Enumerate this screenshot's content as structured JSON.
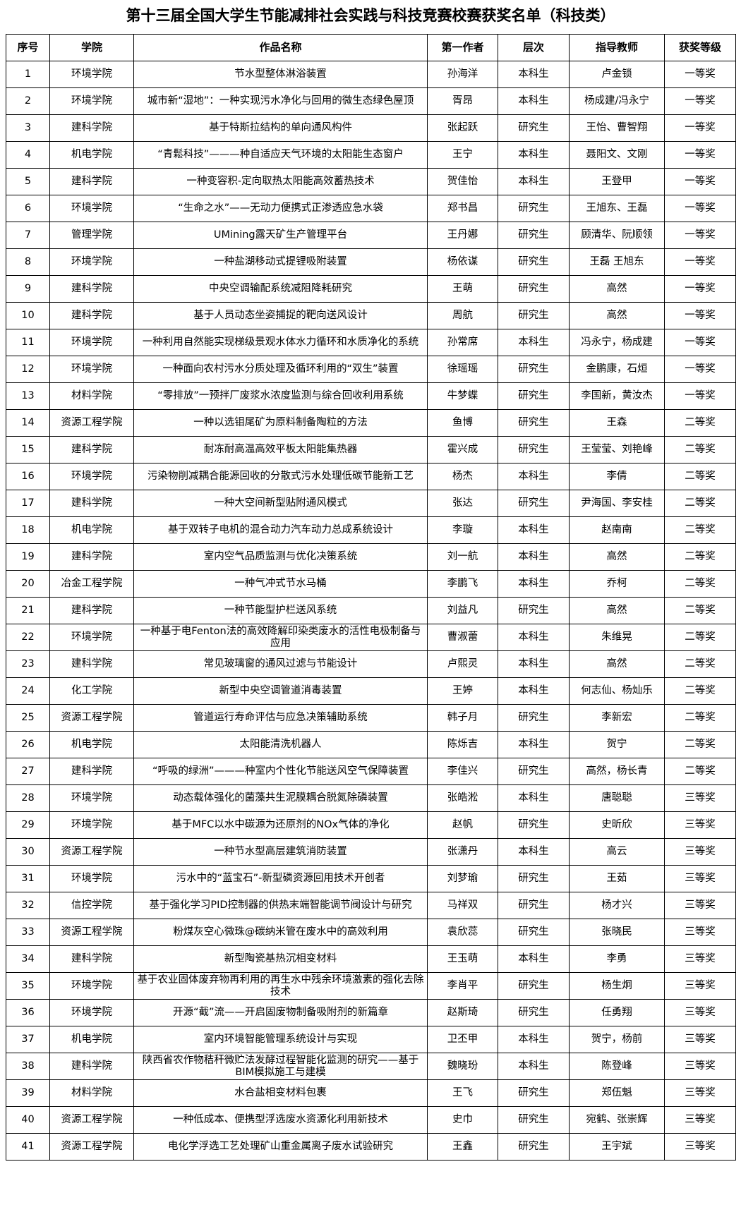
{
  "title": "第十三届全国大学生节能减排社会实践与科技竞赛校赛获奖名单（科技类）",
  "headers": [
    "序号",
    "学院",
    "作品名称",
    "第一作者",
    "层次",
    "指导教师",
    "获奖等级"
  ],
  "rows": [
    [
      "1",
      "环境学院",
      "节水型整体淋浴装置",
      "孙海洋",
      "本科生",
      "卢金锁",
      "一等奖"
    ],
    [
      "2",
      "环境学院",
      "城市新“湿地”：一种实现污水净化与回用的微生态绿色屋顶",
      "胥昂",
      "本科生",
      "杨成建/冯永宁",
      "一等奖"
    ],
    [
      "3",
      "建科学院",
      "基于特斯拉结构的单向通风构件",
      "张起跃",
      "研究生",
      "王怡、曹智翔",
      "一等奖"
    ],
    [
      "4",
      "机电学院",
      "“青鬆科技”———种自适应天气环境的太阳能生态窗户",
      "王宁",
      "本科生",
      "聂阳文、文刚",
      "一等奖"
    ],
    [
      "5",
      "建科学院",
      "一种变容积-定向取热太阳能高效蓄热技术",
      "贺佳怡",
      "本科生",
      "王登甲",
      "一等奖"
    ],
    [
      "6",
      "环境学院",
      "“生命之水”——无动力便携式正渗透应急水袋",
      "郑书昌",
      "研究生",
      "王旭东、王磊",
      "一等奖"
    ],
    [
      "7",
      "管理学院",
      "UMining露天矿生产管理平台",
      "王丹娜",
      "研究生",
      "顾清华、阮顺领",
      "一等奖"
    ],
    [
      "8",
      "环境学院",
      "一种盐湖移动式提锂吸附装置",
      "杨依谋",
      "研究生",
      "王磊  王旭东",
      "一等奖"
    ],
    [
      "9",
      "建科学院",
      "中央空调输配系统减阻降耗研究",
      "王萌",
      "研究生",
      "高然",
      "一等奖"
    ],
    [
      "10",
      "建科学院",
      "基于人员动态坐姿捕捉的靶向送风设计",
      "周航",
      "研究生",
      "高然",
      "一等奖"
    ],
    [
      "11",
      "环境学院",
      "一种利用自然能实现梯级景观水体水力循环和水质净化的系统",
      "孙常席",
      "本科生",
      "冯永宁，杨成建",
      "一等奖"
    ],
    [
      "12",
      "环境学院",
      "一种面向农村污水分质处理及循环利用的“双生”装置",
      "徐瑶瑶",
      "研究生",
      "金鹏康，石烜",
      "一等奖"
    ],
    [
      "13",
      "材料学院",
      "“零排放”一预拌厂废浆水浓度监测与综合回收利用系统",
      "牛梦蝶",
      "研究生",
      "李国新，黄汝杰",
      "一等奖"
    ],
    [
      "14",
      "资源工程学院",
      "一种以选钼尾矿为原料制备陶粒的方法",
      "鱼博",
      "研究生",
      "王森",
      "二等奖"
    ],
    [
      "15",
      "建科学院",
      "耐冻耐高温高效平板太阳能集热器",
      "霍兴成",
      "研究生",
      "王莹莹、刘艳峰",
      "二等奖"
    ],
    [
      "16",
      "环境学院",
      "污染物削减耦合能源回收的分散式污水处理低碳节能新工艺",
      "杨杰",
      "本科生",
      "李倩",
      "二等奖"
    ],
    [
      "17",
      "建科学院",
      "一种大空间新型贴附通风模式",
      "张达",
      "研究生",
      "尹海国、李安桂",
      "二等奖"
    ],
    [
      "18",
      "机电学院",
      "基于双转子电机的混合动力汽车动力总成系统设计",
      "李璇",
      "本科生",
      "赵南南",
      "二等奖"
    ],
    [
      "19",
      "建科学院",
      "室内空气品质监测与优化决策系统",
      "刘一航",
      "本科生",
      "高然",
      "二等奖"
    ],
    [
      "20",
      "冶金工程学院",
      "一种气冲式节水马桶",
      "李鹏飞",
      "本科生",
      "乔柯",
      "二等奖"
    ],
    [
      "21",
      "建科学院",
      "一种节能型护栏送风系统",
      "刘益凡",
      "研究生",
      "高然",
      "二等奖"
    ],
    [
      "22",
      "环境学院",
      "一种基于电Fenton法的高效降解印染类废水的活性电极制备与应用",
      "曹淑蕾",
      "本科生",
      "朱维晃",
      "二等奖"
    ],
    [
      "23",
      "建科学院",
      "常见玻璃窗的通风过滤与节能设计",
      "卢熙灵",
      "本科生",
      "高然",
      "二等奖"
    ],
    [
      "24",
      "化工学院",
      "新型中央空调管道消毒装置",
      "王婷",
      "本科生",
      "何志仙、杨灿乐",
      "二等奖"
    ],
    [
      "25",
      "资源工程学院",
      "管道运行寿命评估与应急决策辅助系统",
      "韩子月",
      "研究生",
      "李新宏",
      "二等奖"
    ],
    [
      "26",
      "机电学院",
      "太阳能清洗机器人",
      "陈烁吉",
      "本科生",
      "贺宁",
      "二等奖"
    ],
    [
      "27",
      "建科学院",
      "“呼吸的绿洲”———种室内个性化节能送风空气保障装置",
      "李佳兴",
      "研究生",
      "高然，杨长青",
      "二等奖"
    ],
    [
      "28",
      "环境学院",
      "动态载体强化的菌藻共生泥膜耦合脱氮除磷装置",
      "张皓淞",
      "本科生",
      "唐聪聪",
      "三等奖"
    ],
    [
      "29",
      "环境学院",
      "基于MFC以水中碳源为还原剂的NOx气体的净化",
      "赵帆",
      "研究生",
      "史昕欣",
      "三等奖"
    ],
    [
      "30",
      "资源工程学院",
      "一种节水型高层建筑消防装置",
      "张潇丹",
      "本科生",
      "高云",
      "三等奖"
    ],
    [
      "31",
      "环境学院",
      "污水中的“蓝宝石”-新型磷资源回用技术开创者",
      "刘梦瑜",
      "研究生",
      "王茹",
      "三等奖"
    ],
    [
      "32",
      "信控学院",
      "基于强化学习PID控制器的供热末端智能调节阀设计与研究",
      "马祥双",
      "研究生",
      "杨才兴",
      "三等奖"
    ],
    [
      "33",
      "资源工程学院",
      "粉煤灰空心微珠@碳纳米管在废水中的高效利用",
      "袁欣蕊",
      "研究生",
      "张晓民",
      "三等奖"
    ],
    [
      "34",
      "建科学院",
      "新型陶瓷基热沉相变材料",
      "王玉萌",
      "本科生",
      "李勇",
      "三等奖"
    ],
    [
      "35",
      "环境学院",
      "基于农业固体废弃物再利用的再生水中残余环境激素的强化去除技术",
      "李肖平",
      "研究生",
      "杨生炯",
      "三等奖"
    ],
    [
      "36",
      "环境学院",
      "开源“截”流——开启固废物制备吸附剂的新篇章",
      "赵斯琦",
      "研究生",
      "任勇翔",
      "三等奖"
    ],
    [
      "37",
      "机电学院",
      "室内环境智能管理系统设计与实现",
      "卫丕甲",
      "本科生",
      "贺宁，杨前",
      "三等奖"
    ],
    [
      "38",
      "建科学院",
      "陕西省农作物秸秆微贮法发酵过程智能化监测的研究——基于BIM模拟施工与建模",
      "魏晓玢",
      "本科生",
      "陈登峰",
      "三等奖"
    ],
    [
      "39",
      "材料学院",
      "水合盐相变材料包裹",
      "王飞",
      "研究生",
      "郑伍魁",
      "三等奖"
    ],
    [
      "40",
      "资源工程学院",
      "一种低成本、便携型浮选废水资源化利用新技术",
      "史巾",
      "研究生",
      "宛鹤、张崇辉",
      "三等奖"
    ],
    [
      "41",
      "资源工程学院",
      "电化学浮选工艺处理矿山重金属离子废水试验研究",
      "王鑫",
      "研究生",
      "王宇斌",
      "三等奖"
    ]
  ]
}
